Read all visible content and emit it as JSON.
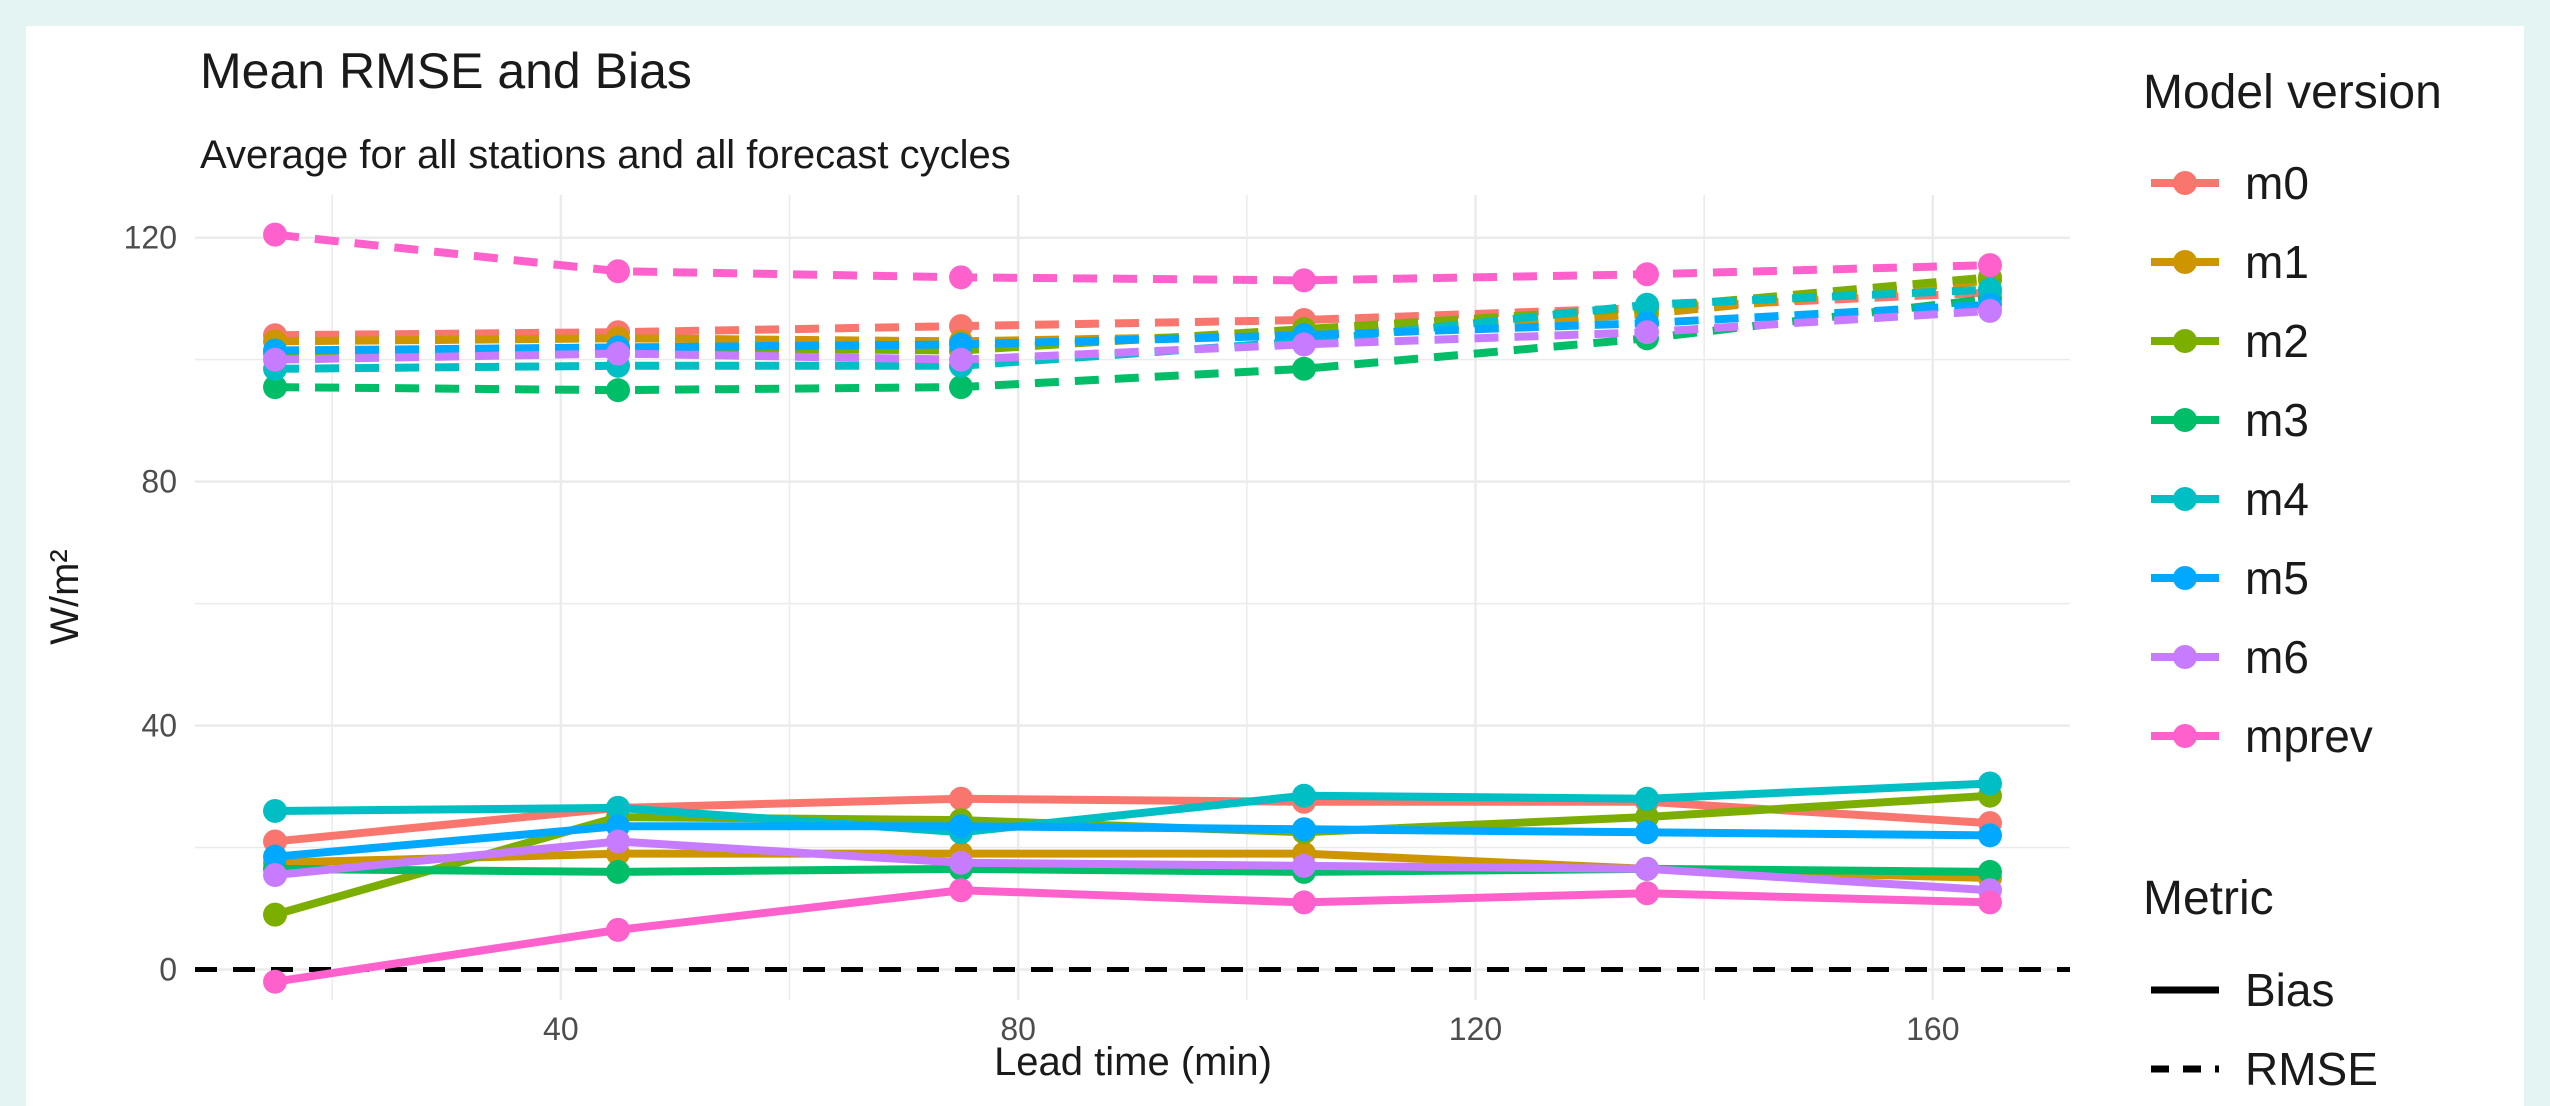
{
  "chart_data": {
    "type": "line",
    "title": "Mean RMSE and Bias",
    "subtitle": "Average for all stations and all forecast cycles",
    "xlabel": "Lead time (min)",
    "ylabel": "W/m²",
    "xlim": [
      8,
      172
    ],
    "ylim": [
      -5,
      127
    ],
    "x_ticks": [
      40,
      80,
      120,
      160
    ],
    "y_ticks": [
      0,
      40,
      80,
      120
    ],
    "x": [
      15,
      45,
      75,
      105,
      135,
      165
    ],
    "grid": true,
    "reference_line": {
      "y": 0,
      "style": "dashed"
    },
    "legend_model_title": "Model version",
    "legend_metric_title": "Metric",
    "metrics": [
      {
        "name": "Bias",
        "dash": "solid"
      },
      {
        "name": "RMSE",
        "dash": "dashed"
      }
    ],
    "series": [
      {
        "name": "m0",
        "color": "#F8766D",
        "bias": [
          21,
          26.5,
          28,
          27.5,
          27.5,
          24
        ],
        "rmse": [
          104,
          104.5,
          105.5,
          106.5,
          108.5,
          111
        ]
      },
      {
        "name": "m1",
        "color": "#CD9600",
        "bias": [
          17.5,
          19,
          19,
          19,
          16.5,
          15
        ],
        "rmse": [
          103,
          103.5,
          103,
          104,
          107.5,
          113
        ]
      },
      {
        "name": "m2",
        "color": "#7CAE00",
        "bias": [
          9,
          25,
          24.5,
          22.5,
          25,
          28.5
        ],
        "rmse": [
          101,
          102,
          101.5,
          105,
          108.5,
          113.5
        ]
      },
      {
        "name": "m3",
        "color": "#00BE67",
        "bias": [
          16.5,
          16,
          16.5,
          16,
          16.5,
          16
        ],
        "rmse": [
          95.5,
          95,
          95.5,
          98.5,
          103.5,
          110
        ]
      },
      {
        "name": "m4",
        "color": "#00BFC4",
        "bias": [
          26,
          26.5,
          22.5,
          28.5,
          28,
          30.5
        ],
        "rmse": [
          98.5,
          99,
          99,
          103,
          109,
          111.5
        ]
      },
      {
        "name": "m5",
        "color": "#00A9FF",
        "bias": [
          18.5,
          23.5,
          23.5,
          23,
          22.5,
          22
        ],
        "rmse": [
          101.5,
          102,
          102.5,
          104,
          106,
          109
        ]
      },
      {
        "name": "m6",
        "color": "#C77CFF",
        "bias": [
          15.5,
          21,
          17.5,
          17,
          16.5,
          13
        ],
        "rmse": [
          100,
          101,
          100,
          102.5,
          104.5,
          108
        ]
      },
      {
        "name": "mprev",
        "color": "#FF61CC",
        "bias": [
          -2,
          6.5,
          13,
          11,
          12.5,
          11
        ],
        "rmse": [
          120.5,
          114.5,
          113.5,
          113,
          114,
          115.5
        ]
      }
    ]
  }
}
